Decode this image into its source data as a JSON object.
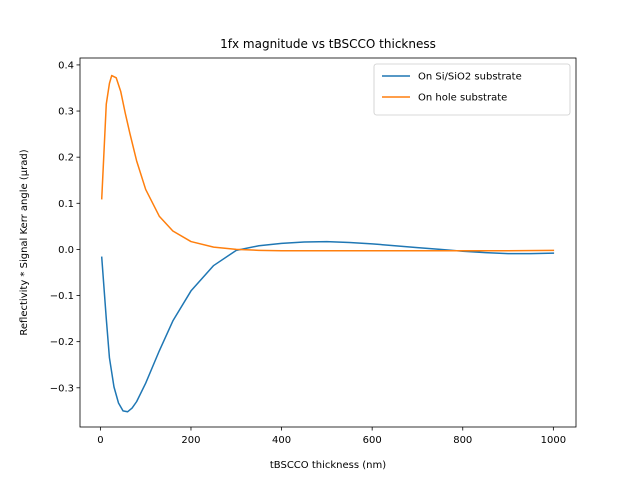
{
  "chart_data": {
    "type": "line",
    "title": "1fx magnitude vs tBSCCO thickness",
    "xlabel": "tBSCCO thickness (nm)",
    "ylabel": "Reflectivity * Signal Kerr angle (μrad)",
    "xlim": [
      -45,
      1050
    ],
    "ylim": [
      -0.385,
      0.415
    ],
    "xticks": [
      0,
      200,
      400,
      600,
      800,
      1000
    ],
    "yticks": [
      -0.3,
      -0.2,
      -0.1,
      0.0,
      0.1,
      0.2,
      0.3,
      0.4
    ],
    "xtick_labels": [
      "0",
      "200",
      "400",
      "600",
      "800",
      "1000"
    ],
    "ytick_labels": [
      "−0.3",
      "−0.2",
      "−0.1",
      "0.0",
      "0.1",
      "0.2",
      "0.3",
      "0.4"
    ],
    "grid": false,
    "legend_position": "upper right",
    "series": [
      {
        "name": "On Si/SiO2 substrate",
        "color": "#1f77b4",
        "x": [
          3,
          13,
          20,
          30,
          40,
          50,
          60,
          70,
          80,
          100,
          130,
          160,
          200,
          250,
          300,
          350,
          400,
          450,
          500,
          550,
          600,
          650,
          700,
          750,
          800,
          850,
          900,
          950,
          1000
        ],
        "y": [
          -0.017,
          -0.15,
          -0.235,
          -0.298,
          -0.333,
          -0.35,
          -0.352,
          -0.344,
          -0.33,
          -0.29,
          -0.22,
          -0.155,
          -0.09,
          -0.035,
          -0.002,
          0.008,
          0.013,
          0.016,
          0.017,
          0.015,
          0.012,
          0.008,
          0.004,
          0.0,
          -0.004,
          -0.007,
          -0.009,
          -0.009,
          -0.008
        ]
      },
      {
        "name": "On hole substrate",
        "color": "#ff7f0e",
        "x": [
          3,
          13,
          20,
          25,
          35,
          45,
          55,
          65,
          80,
          100,
          130,
          160,
          200,
          250,
          300,
          350,
          400,
          450,
          500,
          600,
          700,
          800,
          900,
          1000
        ],
        "y": [
          0.11,
          0.315,
          0.36,
          0.377,
          0.372,
          0.342,
          0.295,
          0.252,
          0.192,
          0.13,
          0.072,
          0.04,
          0.017,
          0.005,
          0.0,
          -0.002,
          -0.003,
          -0.003,
          -0.003,
          -0.003,
          -0.003,
          -0.003,
          -0.003,
          -0.002
        ]
      }
    ]
  }
}
